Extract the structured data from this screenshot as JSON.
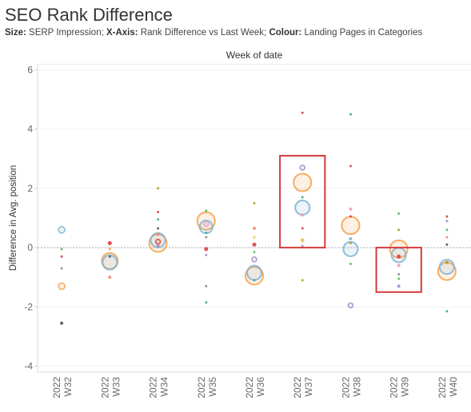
{
  "header": {
    "title": "SEO Rank Difference",
    "subtitle_size_key": "Size:",
    "subtitle_size_val": " SERP Impression; ",
    "subtitle_x_key": "X-Axis:",
    "subtitle_x_val": " Rank Difference vs Last Week; ",
    "subtitle_colour_key": "Colour:",
    "subtitle_colour_val": " Landing Pages in Categories"
  },
  "chart_data": {
    "type": "scatter",
    "column_header": "Week of date",
    "ylabel": "Difference in Avg. position",
    "ylim": [
      -4.2,
      6.2
    ],
    "yticks": [
      -4,
      -2,
      0,
      2,
      4,
      6
    ],
    "categories": [
      {
        "year": "2022",
        "week": "W32"
      },
      {
        "year": "2022",
        "week": "W33"
      },
      {
        "year": "2022",
        "week": "W34"
      },
      {
        "year": "2022",
        "week": "W35"
      },
      {
        "year": "2022",
        "week": "W36"
      },
      {
        "year": "2022",
        "week": "W37"
      },
      {
        "year": "2022",
        "week": "W38"
      },
      {
        "year": "2022",
        "week": "W39"
      },
      {
        "year": "2022",
        "week": "W40"
      }
    ],
    "reference_line": 0,
    "colors": {
      "orange": "#f5a04a",
      "blue": "#7fb3d5",
      "red": "#d94040",
      "green": "#5cb85c",
      "teal": "#3aa6a0",
      "purple": "#a78bc9",
      "pink": "#f39bb7",
      "gray": "#8c8c8c",
      "olive": "#b39b1c",
      "salmon": "#f08a7a",
      "darkgray": "#555555",
      "yellow": "#e8c547"
    },
    "points": [
      {
        "week": 0,
        "y": 0.6,
        "size": 4,
        "color": "blue"
      },
      {
        "week": 0,
        "y": -0.05,
        "size": 1.5,
        "color": "green"
      },
      {
        "week": 0,
        "y": -0.3,
        "size": 1.5,
        "color": "red"
      },
      {
        "week": 0,
        "y": -0.7,
        "size": 1.5,
        "color": "gray"
      },
      {
        "week": 0,
        "y": -1.3,
        "size": 4,
        "color": "orange"
      },
      {
        "week": 0,
        "y": -2.55,
        "size": 2,
        "color": "darkgray"
      },
      {
        "week": 1,
        "y": 0.15,
        "size": 2.5,
        "color": "red"
      },
      {
        "week": 1,
        "y": -0.05,
        "size": 1.5,
        "color": "orange"
      },
      {
        "week": 1,
        "y": -0.3,
        "size": 1.5,
        "color": "darkgray"
      },
      {
        "week": 1,
        "y": -0.45,
        "size": 10,
        "color": "orange"
      },
      {
        "week": 1,
        "y": -0.5,
        "size": 9,
        "color": "blue"
      },
      {
        "week": 1,
        "y": -1.0,
        "size": 2,
        "color": "salmon"
      },
      {
        "week": 2,
        "y": 2.0,
        "size": 1.5,
        "color": "olive"
      },
      {
        "week": 2,
        "y": 1.2,
        "size": 1.5,
        "color": "red"
      },
      {
        "week": 2,
        "y": 0.95,
        "size": 1.5,
        "color": "teal"
      },
      {
        "week": 2,
        "y": 0.65,
        "size": 1.5,
        "color": "darkgray"
      },
      {
        "week": 2,
        "y": 0.45,
        "size": 2,
        "color": "salmon"
      },
      {
        "week": 2,
        "y": 0.25,
        "size": 9,
        "color": "blue"
      },
      {
        "week": 2,
        "y": 0.2,
        "size": 3,
        "color": "red"
      },
      {
        "week": 2,
        "y": 0.15,
        "size": 11,
        "color": "orange"
      },
      {
        "week": 2,
        "y": 0.05,
        "size": 2,
        "color": "purple"
      },
      {
        "week": 3,
        "y": 1.25,
        "size": 1.5,
        "color": "green"
      },
      {
        "week": 3,
        "y": 0.9,
        "size": 11,
        "color": "orange"
      },
      {
        "week": 3,
        "y": 0.8,
        "size": 3,
        "color": "pink"
      },
      {
        "week": 3,
        "y": 0.7,
        "size": 8,
        "color": "blue"
      },
      {
        "week": 3,
        "y": 0.5,
        "size": 1.5,
        "color": "teal"
      },
      {
        "week": 3,
        "y": 0.35,
        "size": 1.5,
        "color": "gray"
      },
      {
        "week": 3,
        "y": -0.05,
        "size": 2.5,
        "color": "red"
      },
      {
        "week": 3,
        "y": -0.25,
        "size": 1.5,
        "color": "purple"
      },
      {
        "week": 3,
        "y": -1.3,
        "size": 1.5,
        "color": "gray"
      },
      {
        "week": 3,
        "y": -1.85,
        "size": 1.5,
        "color": "teal"
      },
      {
        "week": 4,
        "y": 1.5,
        "size": 1.5,
        "color": "olive"
      },
      {
        "week": 4,
        "y": 0.65,
        "size": 2,
        "color": "salmon"
      },
      {
        "week": 4,
        "y": 0.35,
        "size": 1.5,
        "color": "yellow"
      },
      {
        "week": 4,
        "y": 0.1,
        "size": 2.5,
        "color": "red"
      },
      {
        "week": 4,
        "y": -0.15,
        "size": 1.5,
        "color": "green"
      },
      {
        "week": 4,
        "y": -0.4,
        "size": 3,
        "color": "purple"
      },
      {
        "week": 4,
        "y": -0.85,
        "size": 9,
        "color": "blue"
      },
      {
        "week": 4,
        "y": -0.95,
        "size": 11,
        "color": "orange"
      },
      {
        "week": 4,
        "y": -1.1,
        "size": 1.5,
        "color": "teal"
      },
      {
        "week": 5,
        "y": 4.55,
        "size": 1.5,
        "color": "red"
      },
      {
        "week": 5,
        "y": 2.7,
        "size": 3,
        "color": "purple"
      },
      {
        "week": 5,
        "y": 2.2,
        "size": 11,
        "color": "orange"
      },
      {
        "week": 5,
        "y": 1.7,
        "size": 1.5,
        "color": "teal"
      },
      {
        "week": 5,
        "y": 1.35,
        "size": 9,
        "color": "blue"
      },
      {
        "week": 5,
        "y": 1.1,
        "size": 2,
        "color": "pink"
      },
      {
        "week": 5,
        "y": 0.65,
        "size": 1.5,
        "color": "red"
      },
      {
        "week": 5,
        "y": 0.25,
        "size": 2.5,
        "color": "yellow"
      },
      {
        "week": 5,
        "y": 0.05,
        "size": 1.5,
        "color": "purple"
      },
      {
        "week": 5,
        "y": -1.1,
        "size": 1.5,
        "color": "olive"
      },
      {
        "week": 6,
        "y": 4.5,
        "size": 1.5,
        "color": "teal"
      },
      {
        "week": 6,
        "y": 2.75,
        "size": 1.5,
        "color": "red"
      },
      {
        "week": 6,
        "y": 1.3,
        "size": 2,
        "color": "pink"
      },
      {
        "week": 6,
        "y": 1.05,
        "size": 1.5,
        "color": "red"
      },
      {
        "week": 6,
        "y": 0.75,
        "size": 11,
        "color": "orange"
      },
      {
        "week": 6,
        "y": 0.3,
        "size": 2,
        "color": "blue"
      },
      {
        "week": 6,
        "y": 0.15,
        "size": 1.5,
        "color": "olive"
      },
      {
        "week": 6,
        "y": -0.05,
        "size": 9,
        "color": "blue"
      },
      {
        "week": 6,
        "y": -0.55,
        "size": 1.5,
        "color": "green"
      },
      {
        "week": 6,
        "y": -1.95,
        "size": 3,
        "color": "purple"
      },
      {
        "week": 7,
        "y": 1.15,
        "size": 1.5,
        "color": "green"
      },
      {
        "week": 7,
        "y": 0.6,
        "size": 1.5,
        "color": "olive"
      },
      {
        "week": 7,
        "y": -0.05,
        "size": 11,
        "color": "orange"
      },
      {
        "week": 7,
        "y": -0.25,
        "size": 9,
        "color": "blue"
      },
      {
        "week": 7,
        "y": -0.3,
        "size": 2.5,
        "color": "red"
      },
      {
        "week": 7,
        "y": -0.6,
        "size": 2,
        "color": "pink"
      },
      {
        "week": 7,
        "y": -0.9,
        "size": 1.5,
        "color": "gray"
      },
      {
        "week": 7,
        "y": -1.05,
        "size": 1.5,
        "color": "green"
      },
      {
        "week": 7,
        "y": -1.3,
        "size": 2,
        "color": "purple"
      },
      {
        "week": 8,
        "y": 1.05,
        "size": 1.5,
        "color": "red"
      },
      {
        "week": 8,
        "y": 0.9,
        "size": 1.5,
        "color": "purple"
      },
      {
        "week": 8,
        "y": 0.6,
        "size": 1.5,
        "color": "green"
      },
      {
        "week": 8,
        "y": 0.35,
        "size": 1.5,
        "color": "salmon"
      },
      {
        "week": 8,
        "y": 0.1,
        "size": 1.5,
        "color": "darkgray"
      },
      {
        "week": 8,
        "y": -0.5,
        "size": 2,
        "color": "olive"
      },
      {
        "week": 8,
        "y": -0.65,
        "size": 9,
        "color": "blue"
      },
      {
        "week": 8,
        "y": -0.8,
        "size": 11,
        "color": "orange"
      },
      {
        "week": 8,
        "y": -2.15,
        "size": 1.5,
        "color": "teal"
      }
    ],
    "highlight_boxes": [
      {
        "week": 5,
        "y_top": 3.1,
        "y_bottom": 0.0
      },
      {
        "week": 7,
        "y_top": 0.0,
        "y_bottom": -1.5
      }
    ]
  }
}
